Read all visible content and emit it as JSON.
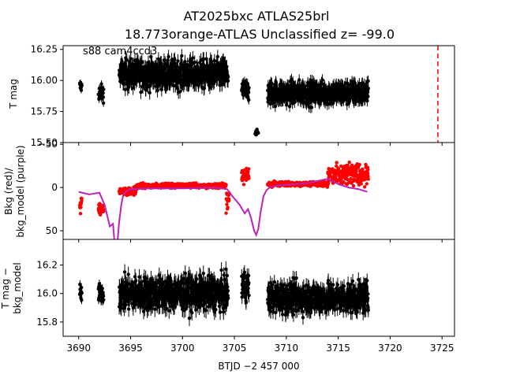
{
  "chart_data": {
    "type": "scatter",
    "title_line1": "AT2025bxc  ATLAS25brl",
    "title_line2": "18.773orange-ATLAS Unclassified z= -99.0",
    "xlabel": "BTJD −2 457 000",
    "xlim": [
      3688.5,
      3726.2
    ],
    "xticks": [
      "3690",
      "3695",
      "3700",
      "3705",
      "3710",
      "3715",
      "3720",
      "3725"
    ],
    "panels": [
      {
        "id": "mag",
        "ylabel": "T mag",
        "ylim": [
          16.28,
          15.5
        ],
        "yticks": [
          "15.50",
          "15.75",
          "16.00",
          "16.25"
        ],
        "annotation": "s88 cam4ccd3",
        "marker_vline": 3724.6,
        "colors": {
          "points": "#000000",
          "vline": "#ff0000"
        },
        "segments": [
          {
            "x": [
              3690.1,
              3690.3
            ],
            "center": 15.95,
            "spread": 0.1
          },
          {
            "x": [
              3691.9,
              3692.4
            ],
            "center": 15.9,
            "spread": 0.12
          },
          {
            "x": [
              3693.9,
              3704.4
            ],
            "center": 16.05,
            "spread": 0.22
          },
          {
            "x": [
              3705.7,
              3706.4
            ],
            "center": 15.92,
            "spread": 0.15
          },
          {
            "x": [
              3707.0,
              3707.3
            ],
            "center": 15.58,
            "spread": 0.04
          },
          {
            "x": [
              3708.2,
              3717.9
            ],
            "center": 15.9,
            "spread": 0.18
          }
        ]
      },
      {
        "id": "bkg",
        "ylabel_line1": "Bkg (red)/",
        "ylabel_line2": "bkg_model (purple)",
        "ylim": [
          -52,
          60
        ],
        "yticks": [
          "50",
          "0",
          "−50"
        ],
        "colors": {
          "points": "#ff0000",
          "model": "#bb22bb"
        },
        "model_curve": {
          "x": [
            3690.0,
            3691.0,
            3692.0,
            3692.5,
            3693.0,
            3693.3,
            3693.5,
            3693.7,
            3693.9,
            3694.1,
            3694.3,
            3694.6,
            3695.0,
            3697.0,
            3700.0,
            3703.0,
            3704.3,
            3704.8,
            3705.5,
            3706.0,
            3706.3,
            3706.6,
            3706.9,
            3707.1,
            3707.3,
            3707.5,
            3707.8,
            3708.1,
            3708.4,
            3709.0,
            3712.0,
            3714.0,
            3715.0,
            3716.0,
            3717.0,
            3717.8
          ],
          "y": [
            5,
            8,
            6,
            20,
            45,
            42,
            70,
            68,
            40,
            20,
            8,
            4,
            2,
            1,
            1,
            0,
            2,
            10,
            20,
            30,
            25,
            35,
            50,
            55,
            48,
            30,
            10,
            3,
            0,
            -2,
            -5,
            -10,
            -4,
            0,
            2,
            5
          ]
        },
        "segments": [
          {
            "x": [
              3690.1,
              3690.3
            ],
            "center": 20,
            "spread": 15
          },
          {
            "x": [
              3691.9,
              3692.4
            ],
            "center": 25,
            "spread": 15
          },
          {
            "x": [
              3693.9,
              3695.5
            ],
            "center": 5,
            "spread": 8
          },
          {
            "x": [
              3695.5,
              3704.2
            ],
            "center": -2,
            "spread": 5
          },
          {
            "x": [
              3704.2,
              3704.5
            ],
            "center": 15,
            "spread": 20
          },
          {
            "x": [
              3705.7,
              3706.4
            ],
            "center": -15,
            "spread": 20
          },
          {
            "x": [
              3708.2,
              3714.0
            ],
            "center": -4,
            "spread": 5
          },
          {
            "x": [
              3714.0,
              3717.9
            ],
            "center": -15,
            "spread": 25
          }
        ]
      },
      {
        "id": "resid",
        "ylabel_line1": "T mag −",
        "ylabel_line2": "bkg_model",
        "ylim": [
          16.38,
          15.7
        ],
        "yticks": [
          "15.8",
          "16.0",
          "16.2"
        ],
        "colors": {
          "points": "#000000"
        },
        "segments": [
          {
            "x": [
              3690.1,
              3690.3
            ],
            "center": 16.0,
            "spread": 0.12
          },
          {
            "x": [
              3691.9,
              3692.4
            ],
            "center": 16.0,
            "spread": 0.12
          },
          {
            "x": [
              3693.9,
              3704.4
            ],
            "center": 16.0,
            "spread": 0.22
          },
          {
            "x": [
              3705.7,
              3706.4
            ],
            "center": 16.05,
            "spread": 0.2
          },
          {
            "x": [
              3708.2,
              3717.9
            ],
            "center": 15.97,
            "spread": 0.2
          }
        ]
      }
    ]
  }
}
